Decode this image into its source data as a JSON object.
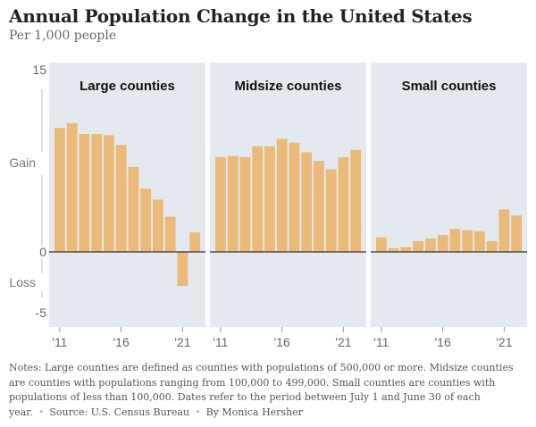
{
  "title": "Annual Population Change in the United States",
  "subtitle": "Per 1,000 people",
  "chart_data": {
    "type": "bar",
    "ylim": [
      -5.5,
      15
    ],
    "yticks": [
      15,
      0,
      -5
    ],
    "ytick_labels": [
      "15",
      "0",
      "-5"
    ],
    "gain_label": "Gain",
    "loss_label": "Loss",
    "x": [
      2011,
      2012,
      2013,
      2014,
      2015,
      2016,
      2017,
      2018,
      2019,
      2020,
      2021,
      2022
    ],
    "xtick_labels": [
      "'11",
      "'16",
      "'21"
    ],
    "series": [
      {
        "name": "Large counties",
        "values": [
          10.2,
          10.6,
          9.7,
          9.7,
          9.6,
          8.8,
          7.0,
          5.2,
          4.3,
          2.9,
          -2.8,
          1.6
        ]
      },
      {
        "name": "Midsize counties",
        "values": [
          7.8,
          7.9,
          7.8,
          8.7,
          8.7,
          9.3,
          9.0,
          8.2,
          7.5,
          6.8,
          7.8,
          8.4
        ]
      },
      {
        "name": "Small counties",
        "values": [
          1.2,
          0.3,
          0.4,
          0.9,
          1.1,
          1.4,
          1.9,
          1.8,
          1.7,
          0.9,
          3.5,
          3.0
        ]
      }
    ],
    "colors": {
      "bar": "#ebb978",
      "panel_bg": "#e4e8ef",
      "zero_line": "#333333",
      "axis_text": "#666666"
    }
  },
  "notes": {
    "text": "Notes: Large counties are defined as counties with populations of 500,000 or more. Midsize counties are counties with populations ranging from 100,000 to 499,000. Small counties are counties with populations of less than 100,000. Dates refer to the period between July 1 and June 30 of each year.",
    "source": "Source: U.S. Census Bureau",
    "byline": "By Monica Hershe r"
  }
}
